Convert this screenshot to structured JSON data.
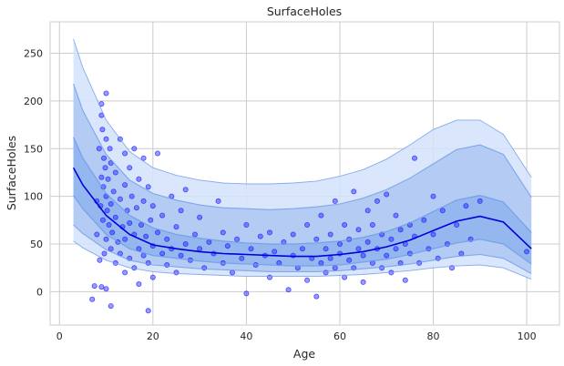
{
  "chart_data": {
    "type": "scatter",
    "title": "SurfaceHoles",
    "xlabel": "Age",
    "ylabel": "SurfaceHoles",
    "xlim": [
      -2,
      107
    ],
    "ylim": [
      -35,
      283
    ],
    "x_ticks": [
      0,
      20,
      40,
      60,
      80,
      100
    ],
    "y_ticks": [
      0,
      50,
      100,
      150,
      200,
      250
    ],
    "grid": true,
    "legend": "none",
    "colors": {
      "points": "#1f1fff",
      "median_line": "#0000dd",
      "band_inner": "#7fa9ec",
      "band_middle": "#aac6f3",
      "band_outer": "#d3e2fa",
      "band_edge": "#6d9be6",
      "grid": "#cccccc"
    },
    "curves": {
      "x": [
        3,
        5,
        10,
        15,
        20,
        25,
        30,
        35,
        40,
        45,
        50,
        55,
        60,
        65,
        70,
        75,
        80,
        85,
        90,
        95,
        101
      ],
      "median": [
        130,
        112,
        80,
        60,
        49,
        45,
        42,
        40,
        39,
        38,
        37,
        37,
        39,
        42,
        47,
        54,
        64,
        74,
        79,
        73,
        45
      ],
      "p25": [
        101,
        87,
        60,
        45,
        38,
        35,
        32,
        30,
        29,
        28,
        27,
        27,
        28,
        31,
        34,
        39,
        45,
        51,
        55,
        50,
        29
      ],
      "p75": [
        162,
        140,
        103,
        80,
        67,
        60,
        56,
        53,
        51,
        50,
        50,
        51,
        53,
        57,
        63,
        72,
        84,
        96,
        101,
        94,
        62
      ],
      "p10": [
        70,
        61,
        44,
        33,
        28,
        26,
        24,
        23,
        22,
        21,
        21,
        21,
        22,
        24,
        26,
        29,
        33,
        37,
        39,
        35,
        19
      ],
      "p90": [
        218,
        190,
        144,
        117,
        103,
        96,
        91,
        88,
        87,
        86,
        87,
        89,
        92,
        98,
        107,
        119,
        134,
        149,
        154,
        144,
        99
      ],
      "p05": [
        53,
        46,
        33,
        25,
        21,
        19,
        18,
        17,
        16,
        16,
        16,
        16,
        17,
        18,
        20,
        22,
        25,
        27,
        28,
        25,
        13
      ],
      "p95": [
        265,
        235,
        180,
        147,
        130,
        122,
        117,
        114,
        113,
        113,
        114,
        116,
        121,
        128,
        139,
        154,
        170,
        180,
        180,
        165,
        120
      ]
    },
    "points": [
      [
        7,
        -8
      ],
      [
        7.5,
        6
      ],
      [
        8,
        95
      ],
      [
        8,
        60
      ],
      [
        8.5,
        150
      ],
      [
        8.6,
        33
      ],
      [
        8.8,
        90
      ],
      [
        9,
        120
      ],
      [
        9,
        185
      ],
      [
        9,
        197
      ],
      [
        9,
        5
      ],
      [
        9.2,
        170
      ],
      [
        9.3,
        75
      ],
      [
        9.4,
        110
      ],
      [
        9.5,
        140
      ],
      [
        9.6,
        40
      ],
      [
        9.8,
        130
      ],
      [
        10,
        208
      ],
      [
        10,
        160
      ],
      [
        10,
        100
      ],
      [
        10,
        55
      ],
      [
        10,
        3
      ],
      [
        10.2,
        85
      ],
      [
        10.4,
        118
      ],
      [
        10.6,
        70
      ],
      [
        10.8,
        150
      ],
      [
        11,
        45
      ],
      [
        11,
        92
      ],
      [
        11,
        135
      ],
      [
        11,
        -15
      ],
      [
        11.3,
        62
      ],
      [
        11.6,
        105
      ],
      [
        12,
        78
      ],
      [
        12,
        125
      ],
      [
        12,
        30
      ],
      [
        12.5,
        52
      ],
      [
        13,
        160
      ],
      [
        13,
        97
      ],
      [
        13,
        40
      ],
      [
        13.5,
        68
      ],
      [
        14,
        145
      ],
      [
        14,
        112
      ],
      [
        14,
        55
      ],
      [
        14,
        20
      ],
      [
        14.5,
        85
      ],
      [
        15,
        130
      ],
      [
        15,
        72
      ],
      [
        15,
        35
      ],
      [
        15.5,
        100
      ],
      [
        16,
        60
      ],
      [
        16,
        150
      ],
      [
        16,
        25
      ],
      [
        16.5,
        88
      ],
      [
        17,
        45
      ],
      [
        17,
        118
      ],
      [
        17,
        8
      ],
      [
        17.5,
        70
      ],
      [
        18,
        140
      ],
      [
        18,
        95
      ],
      [
        18,
        38
      ],
      [
        18.5,
        58
      ],
      [
        19,
        110
      ],
      [
        19,
        -20
      ],
      [
        19,
        30
      ],
      [
        19.5,
        75
      ],
      [
        20,
        48
      ],
      [
        20,
        90
      ],
      [
        20,
        15
      ],
      [
        21,
        145
      ],
      [
        21,
        62
      ],
      [
        22,
        40
      ],
      [
        22,
        80
      ],
      [
        23,
        55
      ],
      [
        23,
        28
      ],
      [
        24,
        100
      ],
      [
        24,
        45
      ],
      [
        25,
        68
      ],
      [
        25,
        20
      ],
      [
        26,
        38
      ],
      [
        26,
        85
      ],
      [
        27,
        50
      ],
      [
        27,
        107
      ],
      [
        28,
        33
      ],
      [
        29,
        60
      ],
      [
        30,
        45
      ],
      [
        30,
        78
      ],
      [
        31,
        25
      ],
      [
        32,
        52
      ],
      [
        33,
        40
      ],
      [
        34,
        95
      ],
      [
        35,
        30
      ],
      [
        35,
        62
      ],
      [
        36,
        48
      ],
      [
        37,
        20
      ],
      [
        38,
        55
      ],
      [
        39,
        35
      ],
      [
        40,
        -2
      ],
      [
        40,
        70
      ],
      [
        41,
        45
      ],
      [
        42,
        28
      ],
      [
        43,
        58
      ],
      [
        44,
        38
      ],
      [
        45,
        15
      ],
      [
        45,
        62
      ],
      [
        46,
        42
      ],
      [
        47,
        30
      ],
      [
        48,
        52
      ],
      [
        49,
        2
      ],
      [
        50,
        38
      ],
      [
        50,
        60
      ],
      [
        51,
        25
      ],
      [
        52,
        45
      ],
      [
        53,
        70
      ],
      [
        53,
        12
      ],
      [
        54,
        35
      ],
      [
        55,
        55
      ],
      [
        55,
        -5
      ],
      [
        56,
        30
      ],
      [
        56,
        80
      ],
      [
        57,
        45
      ],
      [
        57,
        20
      ],
      [
        58,
        60
      ],
      [
        58,
        35
      ],
      [
        59,
        25
      ],
      [
        59,
        95
      ],
      [
        60,
        50
      ],
      [
        60,
        40
      ],
      [
        61,
        15
      ],
      [
        61,
        70
      ],
      [
        62,
        33
      ],
      [
        62,
        55
      ],
      [
        63,
        105
      ],
      [
        63,
        25
      ],
      [
        64,
        45
      ],
      [
        64,
        65
      ],
      [
        65,
        10
      ],
      [
        65,
        38
      ],
      [
        66,
        85
      ],
      [
        66,
        52
      ],
      [
        67,
        30
      ],
      [
        67,
        70
      ],
      [
        68,
        45
      ],
      [
        68,
        95
      ],
      [
        69,
        25
      ],
      [
        69,
        60
      ],
      [
        70,
        38
      ],
      [
        70,
        102
      ],
      [
        71,
        55
      ],
      [
        71,
        20
      ],
      [
        72,
        45
      ],
      [
        72,
        80
      ],
      [
        73,
        30
      ],
      [
        73,
        65
      ],
      [
        74,
        50
      ],
      [
        74,
        12
      ],
      [
        75,
        70
      ],
      [
        75,
        40
      ],
      [
        76,
        140
      ],
      [
        76,
        58
      ],
      [
        77,
        30
      ],
      [
        78,
        75
      ],
      [
        79,
        45
      ],
      [
        80,
        100
      ],
      [
        80,
        60
      ],
      [
        81,
        35
      ],
      [
        82,
        85
      ],
      [
        83,
        50
      ],
      [
        84,
        25
      ],
      [
        85,
        70
      ],
      [
        86,
        40
      ],
      [
        87,
        90
      ],
      [
        88,
        55
      ],
      [
        90,
        95
      ],
      [
        100,
        42
      ]
    ]
  }
}
